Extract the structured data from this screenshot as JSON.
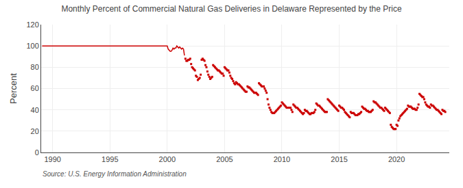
{
  "chart_data": {
    "type": "line",
    "title": "Monthly Percent of Commercial Natural Gas Deliveries in Delaware Represented by the Price",
    "ylabel": "Percent",
    "annotations": [
      "Source: U.S. Energy Information Administration"
    ],
    "xlim": [
      1989.0,
      2024.6
    ],
    "xticks": [
      1990,
      1995,
      2000,
      2005,
      2010,
      2015,
      2020
    ],
    "ylim": [
      0,
      120
    ],
    "yticks": [
      0,
      20,
      40,
      60,
      80,
      100,
      120
    ],
    "grid": true,
    "series": [
      {
        "type": "line",
        "color": "#cc0000",
        "x": [
          1989.083,
          1989.167,
          1989.25,
          1989.333,
          1989.417,
          1989.5,
          1989.583,
          1989.667,
          1989.75,
          1989.833,
          1989.917,
          1990.0,
          1990.083,
          1990.167,
          1990.25,
          1990.333,
          1990.417,
          1990.5,
          1990.583,
          1990.667,
          1990.75,
          1990.833,
          1990.917,
          1991.0,
          1991.083,
          1991.167,
          1991.25,
          1991.333,
          1991.417,
          1991.5,
          1991.583,
          1991.667,
          1991.75,
          1991.833,
          1991.917,
          1992.0,
          1992.083,
          1992.167,
          1992.25,
          1992.333,
          1992.417,
          1992.5,
          1992.583,
          1992.667,
          1992.75,
          1992.833,
          1992.917,
          1993.0,
          1993.083,
          1993.167,
          1993.25,
          1993.333,
          1993.417,
          1993.5,
          1993.583,
          1993.667,
          1993.75,
          1993.833,
          1993.917,
          1994.0,
          1994.083,
          1994.167,
          1994.25,
          1994.333,
          1994.417,
          1994.5,
          1994.583,
          1994.667,
          1994.75,
          1994.833,
          1994.917,
          1995.0,
          1995.083,
          1995.167,
          1995.25,
          1995.333,
          1995.417,
          1995.5,
          1995.583,
          1995.667,
          1995.75,
          1995.833,
          1995.917,
          1996.0,
          1996.083,
          1996.167,
          1996.25,
          1996.333,
          1996.417,
          1996.5,
          1996.583,
          1996.667,
          1996.75,
          1996.833,
          1996.917,
          1997.0,
          1997.083,
          1997.167,
          1997.25,
          1997.333,
          1997.417,
          1997.5,
          1997.583,
          1997.667,
          1997.75,
          1997.833,
          1997.917,
          1998.0,
          1998.083,
          1998.167,
          1998.25,
          1998.333,
          1998.417,
          1998.5,
          1998.583,
          1998.667,
          1998.75,
          1998.833,
          1998.917,
          1999.0,
          1999.083,
          1999.167,
          1999.25,
          1999.333,
          1999.417,
          1999.5,
          1999.583,
          1999.667,
          1999.75,
          1999.833,
          1999.917,
          2000.0,
          2000.083,
          2000.167,
          2000.25,
          2000.333,
          2000.417,
          2000.5,
          2000.583,
          2000.667,
          2000.75,
          2000.833,
          2000.917,
          2001.0,
          2001.083,
          2001.167,
          2001.25,
          2001.333,
          2001.417,
          2001.5
        ],
        "values": [
          100,
          100,
          100,
          100,
          100,
          100,
          100,
          100,
          100,
          100,
          100,
          100,
          100,
          100,
          100,
          100,
          100,
          100,
          100,
          100,
          100,
          100,
          100,
          100,
          100,
          100,
          100,
          100,
          100,
          100,
          100,
          100,
          100,
          100,
          100,
          100,
          100,
          100,
          100,
          100,
          100,
          100,
          100,
          100,
          100,
          100,
          100,
          100,
          100,
          100,
          100,
          100,
          100,
          100,
          100,
          100,
          100,
          100,
          100,
          100,
          100,
          100,
          100,
          100,
          100,
          100,
          100,
          100,
          100,
          100,
          100,
          100,
          100,
          100,
          100,
          100,
          100,
          100,
          100,
          100,
          100,
          100,
          100,
          100,
          100,
          100,
          100,
          100,
          100,
          100,
          100,
          100,
          100,
          100,
          100,
          100,
          100,
          100,
          100,
          100,
          100,
          100,
          100,
          100,
          100,
          100,
          100,
          100,
          100,
          100,
          100,
          100,
          100,
          100,
          100,
          100,
          100,
          100,
          100,
          100,
          100,
          100,
          100,
          100,
          100,
          100,
          100,
          100,
          100,
          100,
          100,
          100,
          97,
          96,
          95,
          95,
          96,
          98,
          97,
          98,
          98,
          100,
          99,
          98,
          99,
          98,
          97,
          98,
          97,
          91
        ]
      },
      {
        "type": "scatter",
        "marker": "square",
        "color": "#cc0000",
        "x": [
          2001.583,
          2001.667,
          2001.75,
          2001.833,
          2001.917,
          2002.0,
          2002.083,
          2002.167,
          2002.25,
          2002.333,
          2002.417,
          2002.5,
          2002.583,
          2002.667,
          2002.75,
          2002.833,
          2002.917,
          2003.0,
          2003.083,
          2003.167,
          2003.25,
          2003.333,
          2003.417,
          2003.5,
          2003.583,
          2003.667,
          2003.75,
          2003.833,
          2003.917,
          2004.0,
          2004.083,
          2004.167,
          2004.25,
          2004.333,
          2004.417,
          2004.5,
          2004.583,
          2004.667,
          2004.75,
          2004.833,
          2004.917,
          2005.0,
          2005.083,
          2005.167,
          2005.25,
          2005.333,
          2005.417,
          2005.5,
          2005.583,
          2005.667,
          2005.75,
          2005.833,
          2005.917,
          2006.0,
          2006.083,
          2006.167,
          2006.25,
          2006.333,
          2006.417,
          2006.5,
          2006.583,
          2006.667,
          2006.75,
          2006.833,
          2006.917,
          2007.0,
          2007.083,
          2007.167,
          2007.25,
          2007.333,
          2007.417,
          2007.5,
          2007.583,
          2007.667,
          2007.75,
          2007.833,
          2007.917,
          2008.0,
          2008.083,
          2008.167,
          2008.25,
          2008.333,
          2008.417,
          2008.5,
          2008.583,
          2008.667,
          2008.75,
          2008.833,
          2008.917,
          2009.0,
          2009.083,
          2009.167,
          2009.25,
          2009.333,
          2009.417,
          2009.5,
          2009.583,
          2009.667,
          2009.75,
          2009.833,
          2009.917,
          2010.0,
          2010.083,
          2010.167,
          2010.25,
          2010.333,
          2010.417,
          2010.5,
          2010.583,
          2010.667,
          2010.75,
          2010.833,
          2010.917,
          2011.0,
          2011.083,
          2011.167,
          2011.25,
          2011.333,
          2011.417,
          2011.5,
          2011.583,
          2011.667,
          2011.75,
          2011.833,
          2011.917,
          2012.0,
          2012.083,
          2012.167,
          2012.25,
          2012.333,
          2012.417,
          2012.5,
          2012.583,
          2012.667,
          2012.75,
          2012.833,
          2012.917,
          2013.0,
          2013.083,
          2013.167,
          2013.25,
          2013.333,
          2013.417,
          2013.5,
          2013.583,
          2013.667,
          2013.75,
          2013.833,
          2013.917,
          2014.0,
          2014.083,
          2014.167,
          2014.25,
          2014.333,
          2014.417,
          2014.5,
          2014.583,
          2014.667,
          2014.75,
          2014.833,
          2014.917,
          2015.0,
          2015.083,
          2015.167,
          2015.25,
          2015.333,
          2015.417,
          2015.5,
          2015.583,
          2015.667,
          2015.75,
          2015.833,
          2015.917,
          2016.0,
          2016.083,
          2016.167,
          2016.25,
          2016.333,
          2016.417,
          2016.5,
          2016.583,
          2016.667,
          2016.75,
          2016.833,
          2016.917,
          2017.0,
          2017.083,
          2017.167,
          2017.25,
          2017.333,
          2017.417,
          2017.5,
          2017.583,
          2017.667,
          2017.75,
          2017.833,
          2017.917,
          2018.0,
          2018.083,
          2018.167,
          2018.25,
          2018.333,
          2018.417,
          2018.5,
          2018.583,
          2018.667,
          2018.75,
          2018.833,
          2018.917,
          2019.0,
          2019.083,
          2019.167,
          2019.25,
          2019.333,
          2019.417,
          2019.5,
          2019.583,
          2019.667,
          2019.75,
          2019.833,
          2019.917,
          2020.0,
          2020.083,
          2020.167,
          2020.25,
          2020.333,
          2020.417,
          2020.5,
          2020.583,
          2020.667,
          2020.75,
          2020.833,
          2020.917,
          2021.0,
          2021.083,
          2021.167,
          2021.25,
          2021.333,
          2021.417,
          2021.5,
          2021.583,
          2021.667,
          2021.75,
          2021.833,
          2021.917,
          2022.0,
          2022.083,
          2022.167,
          2022.25,
          2022.333,
          2022.417,
          2022.5,
          2022.583,
          2022.667,
          2022.75,
          2022.833,
          2022.917,
          2023.0,
          2023.083,
          2023.167,
          2023.25,
          2023.333,
          2023.417,
          2023.5,
          2023.583,
          2023.667,
          2023.75,
          2023.833,
          2023.917,
          2024.0,
          2024.083,
          2024.167,
          2024.25
        ],
        "values": [
          88,
          86,
          86,
          87,
          87,
          88,
          83,
          80,
          79,
          78,
          77,
          72,
          71,
          68,
          69,
          70,
          73,
          87,
          88,
          87,
          86,
          82,
          80,
          76,
          73,
          71,
          69,
          70,
          71,
          82,
          81,
          80,
          79,
          78,
          77,
          77,
          76,
          75,
          74,
          74,
          72,
          80,
          79,
          78,
          77,
          77,
          75,
          72,
          70,
          69,
          67,
          65,
          64,
          66,
          65,
          64,
          64,
          63,
          62,
          61,
          60,
          59,
          58,
          57,
          57,
          62,
          61,
          61,
          60,
          59,
          58,
          57,
          56,
          56,
          56,
          55,
          54,
          65,
          64,
          63,
          62,
          62,
          62,
          60,
          58,
          56,
          50,
          45,
          42,
          40,
          38,
          37,
          37,
          37,
          38,
          39,
          40,
          41,
          42,
          43,
          44,
          47,
          46,
          45,
          44,
          43,
          42,
          42,
          42,
          42,
          42,
          40,
          38,
          45,
          44,
          43,
          42,
          42,
          41,
          40,
          39,
          38,
          37,
          36,
          37,
          40,
          39,
          39,
          38,
          37,
          36,
          36,
          37,
          37,
          37,
          38,
          40,
          46,
          45,
          44,
          44,
          43,
          42,
          41,
          40,
          39,
          38,
          38,
          38,
          50,
          49,
          48,
          47,
          46,
          45,
          44,
          43,
          42,
          41,
          40,
          39,
          44,
          43,
          42,
          42,
          41,
          40,
          38,
          37,
          36,
          35,
          34,
          33,
          38,
          37,
          37,
          37,
          36,
          35,
          35,
          35,
          36,
          36,
          37,
          38,
          43,
          42,
          41,
          41,
          40,
          39,
          39,
          38,
          38,
          38,
          39,
          40,
          48,
          47,
          47,
          46,
          45,
          44,
          43,
          42,
          42,
          41,
          40,
          39,
          42,
          41,
          40,
          39,
          38,
          37,
          26,
          24,
          23,
          22,
          22,
          22,
          26,
          25,
          30,
          32,
          34,
          35,
          36,
          37,
          38,
          39,
          40,
          41,
          44,
          43,
          43,
          43,
          42,
          41,
          41,
          41,
          40,
          40,
          42,
          45,
          55,
          54,
          53,
          52,
          52,
          50,
          47,
          45,
          44,
          43,
          43,
          42,
          45,
          44,
          44,
          43,
          42,
          41,
          40,
          40,
          39,
          38,
          37,
          36,
          40,
          39,
          39,
          38
        ]
      }
    ]
  }
}
